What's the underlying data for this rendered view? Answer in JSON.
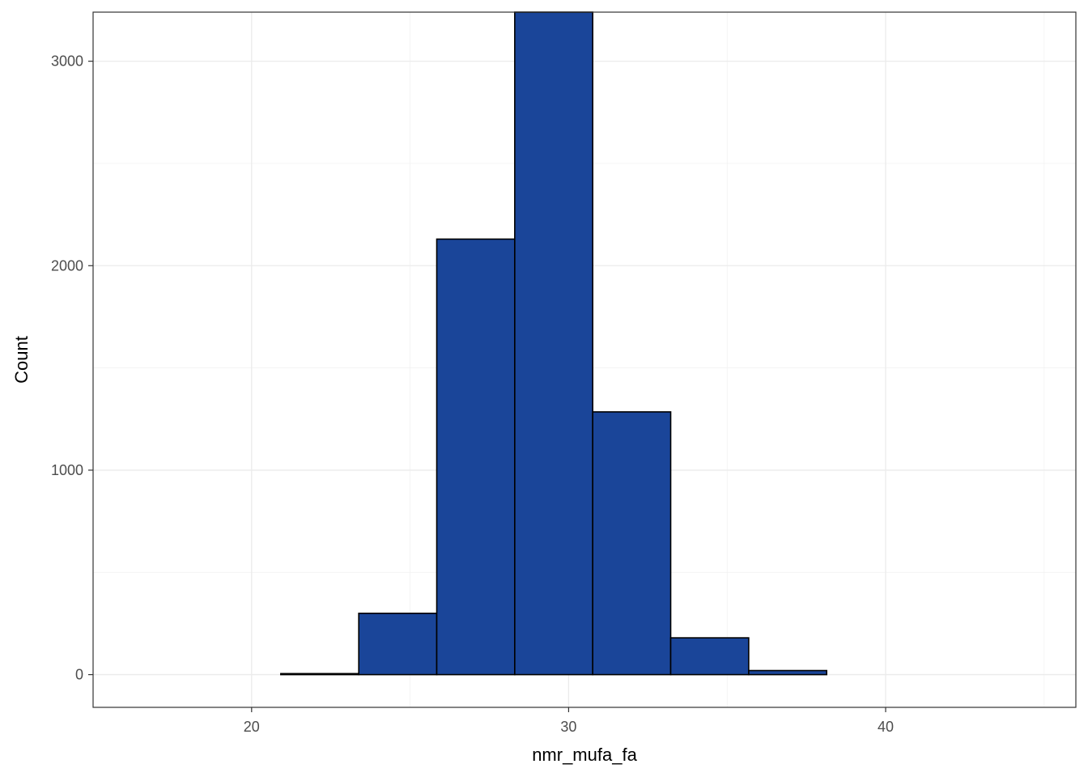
{
  "chart_data": {
    "type": "bar",
    "subtype": "histogram",
    "title": "",
    "xlabel": "nmr_mufa_fa",
    "ylabel": "Count",
    "xlim": [
      15.0,
      46.0
    ],
    "ylim": [
      -160,
      3240
    ],
    "x_ticks": [
      20,
      30,
      40
    ],
    "x_tick_labels": [
      "20",
      "30",
      "40"
    ],
    "x_minor_ticks": [
      15,
      25,
      35,
      45
    ],
    "y_ticks": [
      0,
      1000,
      2000,
      3000
    ],
    "y_tick_labels": [
      "0",
      "1000",
      "2000",
      "3000"
    ],
    "y_minor_ticks": [
      500,
      1500,
      2500
    ],
    "grid": true,
    "legend": "none",
    "bar_fill": "#1a4599",
    "bar_outline": "#000000",
    "bins": [
      {
        "x_min": 16.0,
        "x_max": 18.46,
        "count": 0
      },
      {
        "x_min": 18.46,
        "x_max": 20.92,
        "count": 0
      },
      {
        "x_min": 20.92,
        "x_max": 23.38,
        "count": 5
      },
      {
        "x_min": 23.38,
        "x_max": 25.84,
        "count": 300
      },
      {
        "x_min": 25.84,
        "x_max": 28.3,
        "count": 2130
      },
      {
        "x_min": 28.3,
        "x_max": 30.76,
        "count": 3240
      },
      {
        "x_min": 30.76,
        "x_max": 33.22,
        "count": 1285
      },
      {
        "x_min": 33.22,
        "x_max": 35.68,
        "count": 180
      },
      {
        "x_min": 35.68,
        "x_max": 38.14,
        "count": 20
      },
      {
        "x_min": 38.14,
        "x_max": 40.6,
        "count": 0
      },
      {
        "x_min": 40.6,
        "x_max": 43.06,
        "count": 0
      },
      {
        "x_min": 43.06,
        "x_max": 45.52,
        "count": 0
      }
    ]
  }
}
